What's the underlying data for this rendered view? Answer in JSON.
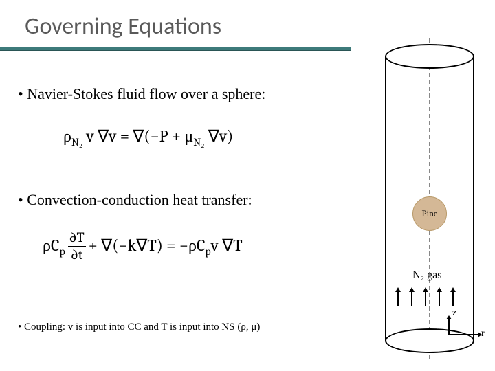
{
  "title": "Governing Equations",
  "bullets": {
    "b1": "Navier-Stokes fluid flow over a sphere:",
    "b2": "Convection-conduction heat transfer:",
    "b3": "Coupling: v is input into CC and T is input into NS (ρ, μ)"
  },
  "eq1": {
    "lhs_rho": "ρ",
    "lhs_sub": "N₂",
    "lhs_rest": " v ∇v = ∇(−P + μ",
    "mu_sub": "N₂",
    "rhs_close": " ∇v)"
  },
  "eq2": {
    "pre": "ρC",
    "p": "p",
    "dT": "∂T",
    "dt": "∂t",
    "mid": " + ∇(−k∇T) = −ρC",
    "p2": "p",
    "post": "v ∇T"
  },
  "diagram": {
    "pine_label": "Pine",
    "gas_label": "N₂ gas",
    "z": "z",
    "r": "r",
    "colors": {
      "title_bar": "#3d7a7a",
      "title_text": "#595959",
      "pine_fill": "#d4b896",
      "pine_border": "#b89968",
      "axis_dash": "#888888"
    }
  }
}
